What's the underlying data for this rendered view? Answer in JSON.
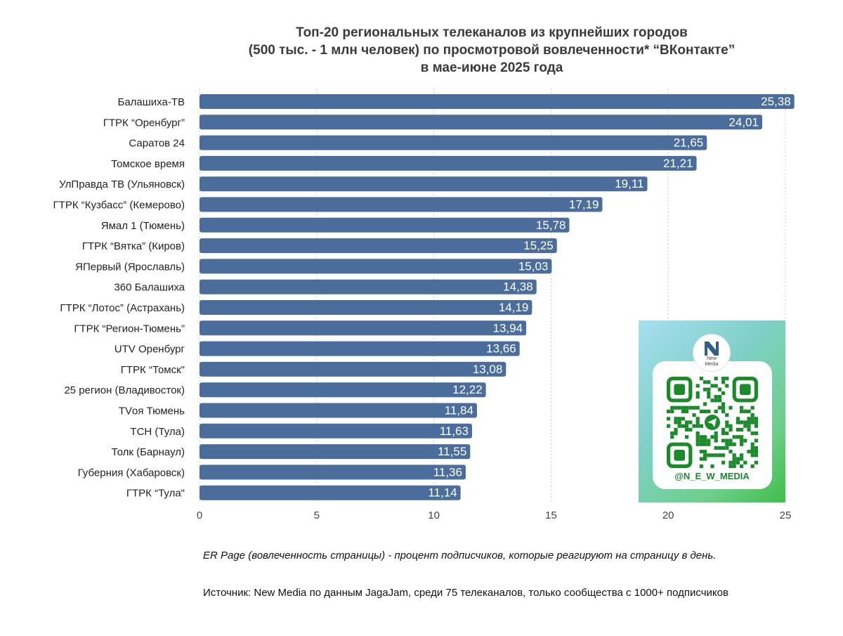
{
  "header": {
    "title_lines": [
      "Топ-20 региональных телеканалов из крупнейших городов",
      "(500 тыс. - 1 млн человек) по просмотровой вовлеченности* “ВКонтакте”",
      "в мае-июне 2025 года"
    ]
  },
  "chart_data": {
    "type": "bar",
    "orientation": "horizontal",
    "title": "Топ-20 региональных телеканалов из крупнейших городов (500 тыс. - 1 млн человек) по просмотровой вовлеченности* “ВКонтакте” в мае-июне 2025 года",
    "categories": [
      "Балашиха-ТВ",
      "ГТРК “Оренбург”",
      "Саратов 24",
      "Томское время",
      "УлПравда ТВ (Ульяновск)",
      "ГТРК “Кузбасс” (Кемерово)",
      "Ямал 1 (Тюмень)",
      "ГТРК “Вятка” (Киров)",
      "ЯПервый (Ярославль)",
      "360 Балашиха",
      "ГТРК “Лотос” (Астрахань)",
      "ГТРК “Регион-Тюмень”",
      "UTV Оренбург",
      "ГТРК “Томск\"",
      "25 регион (Владивосток)",
      "TVоя Тюмень",
      "ТСН (Тула)",
      "Толк (Барнаул)",
      "Губерния (Хабаровск)",
      "ГТРК “Тула\""
    ],
    "values": [
      25.38,
      24.01,
      21.65,
      21.21,
      19.11,
      17.19,
      15.78,
      15.25,
      15.03,
      14.38,
      14.19,
      13.94,
      13.66,
      13.08,
      12.22,
      11.84,
      11.63,
      11.55,
      11.36,
      11.14
    ],
    "value_labels": [
      "25,38",
      "24,01",
      "21,65",
      "21,21",
      "19,11",
      "17,19",
      "15,78",
      "15,25",
      "15,03",
      "14,38",
      "14,19",
      "13,94",
      "13,66",
      "13,08",
      "12,22",
      "11,84",
      "11,63",
      "11,55",
      "11,36",
      "11,14"
    ],
    "xlim": [
      0,
      25
    ],
    "xticks": [
      0,
      5,
      10,
      15,
      20,
      25
    ],
    "xlabel": "",
    "ylabel": "",
    "grid": "vertical-dotted",
    "bar_color": "#4a6d9c",
    "label_color": "#ffffff"
  },
  "qr_card": {
    "logo_text": "New\nMedia",
    "handle": "@N_E_W_MEDIA",
    "accent": "#1a8a2b"
  },
  "notes": {
    "definition": "ER Page (вовлеченность страницы) - процент подписчиков, которые реагируют на страницу в день.",
    "source": "Источник: New Media по данным JagaJam, среди 75 телеканалов, только сообщества с 1000+ подписчиков"
  }
}
